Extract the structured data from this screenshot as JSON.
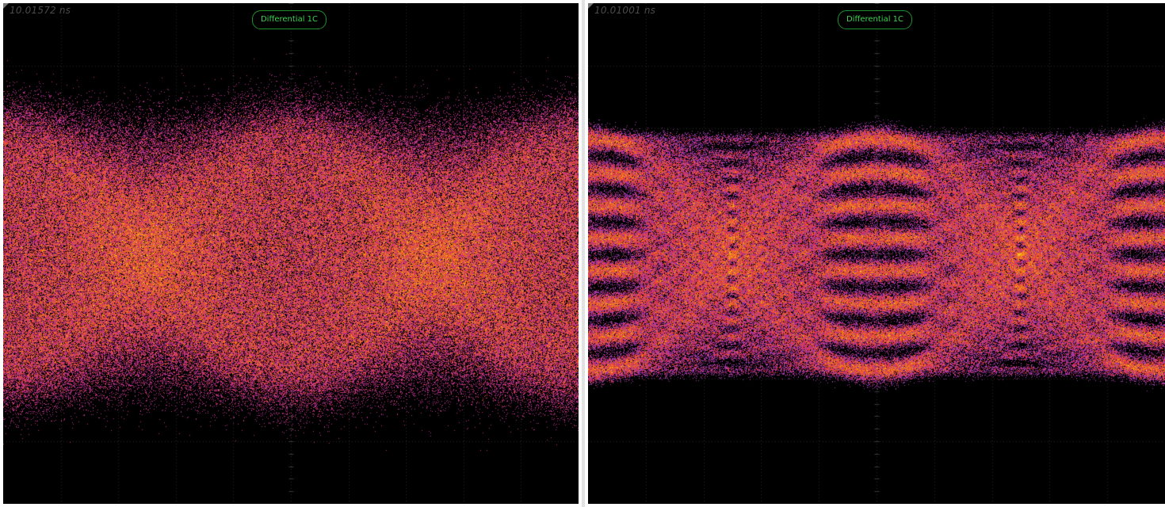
{
  "screens": [
    {
      "id": "left",
      "time_readout": "10.01572 ns",
      "channel_badge": "Differential 1C",
      "pattern": "noisy-eye"
    },
    {
      "id": "right",
      "time_readout": "10.01001 ns",
      "channel_badge": "Differential 1C",
      "pattern": "multilevel-eye"
    }
  ],
  "colors": {
    "background": "#000000",
    "grid": "#2a2a2a",
    "badge_text": "#3cd24e",
    "badge_border": "#1f8f2c",
    "persistence_low": "#2fbf3a",
    "persistence_mid_low": "#7a45d8",
    "persistence_mid": "#d8265a",
    "persistence_mid_high": "#f07a14",
    "persistence_high": "#ffd21a",
    "persistence_peak": "#ffffff"
  }
}
